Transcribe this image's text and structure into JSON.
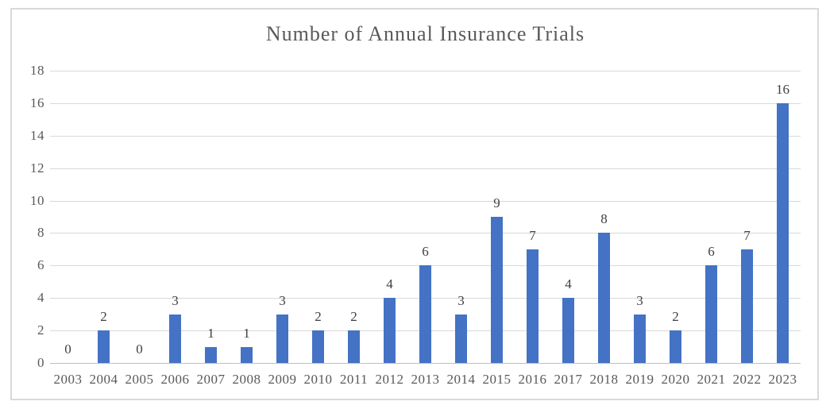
{
  "chart_data": {
    "type": "bar",
    "title": "Number of Annual Insurance Trials",
    "categories": [
      "2003",
      "2004",
      "2005",
      "2006",
      "2007",
      "2008",
      "2009",
      "2010",
      "2011",
      "2012",
      "2013",
      "2014",
      "2015",
      "2016",
      "2017",
      "2018",
      "2019",
      "2020",
      "2021",
      "2022",
      "2023"
    ],
    "values": [
      0,
      2,
      0,
      3,
      1,
      1,
      3,
      2,
      2,
      4,
      6,
      3,
      9,
      7,
      4,
      8,
      3,
      2,
      6,
      7,
      16
    ],
    "xlabel": "",
    "ylabel": "",
    "ylim": [
      0,
      18
    ],
    "ytick_step": 2,
    "yticks": [
      0,
      2,
      4,
      6,
      8,
      10,
      12,
      14,
      16,
      18
    ],
    "grid": true,
    "legend_position": "none",
    "data_labels_visible": true,
    "colors": {
      "bar": "#4472C4",
      "gridline": "#D9D9D9",
      "axis_line": "#BFBFBF",
      "title_text": "#595959",
      "axis_text": "#595959",
      "data_label_text": "#404040",
      "frame_border": "#D9D9D9",
      "background": "#FFFFFF"
    }
  }
}
